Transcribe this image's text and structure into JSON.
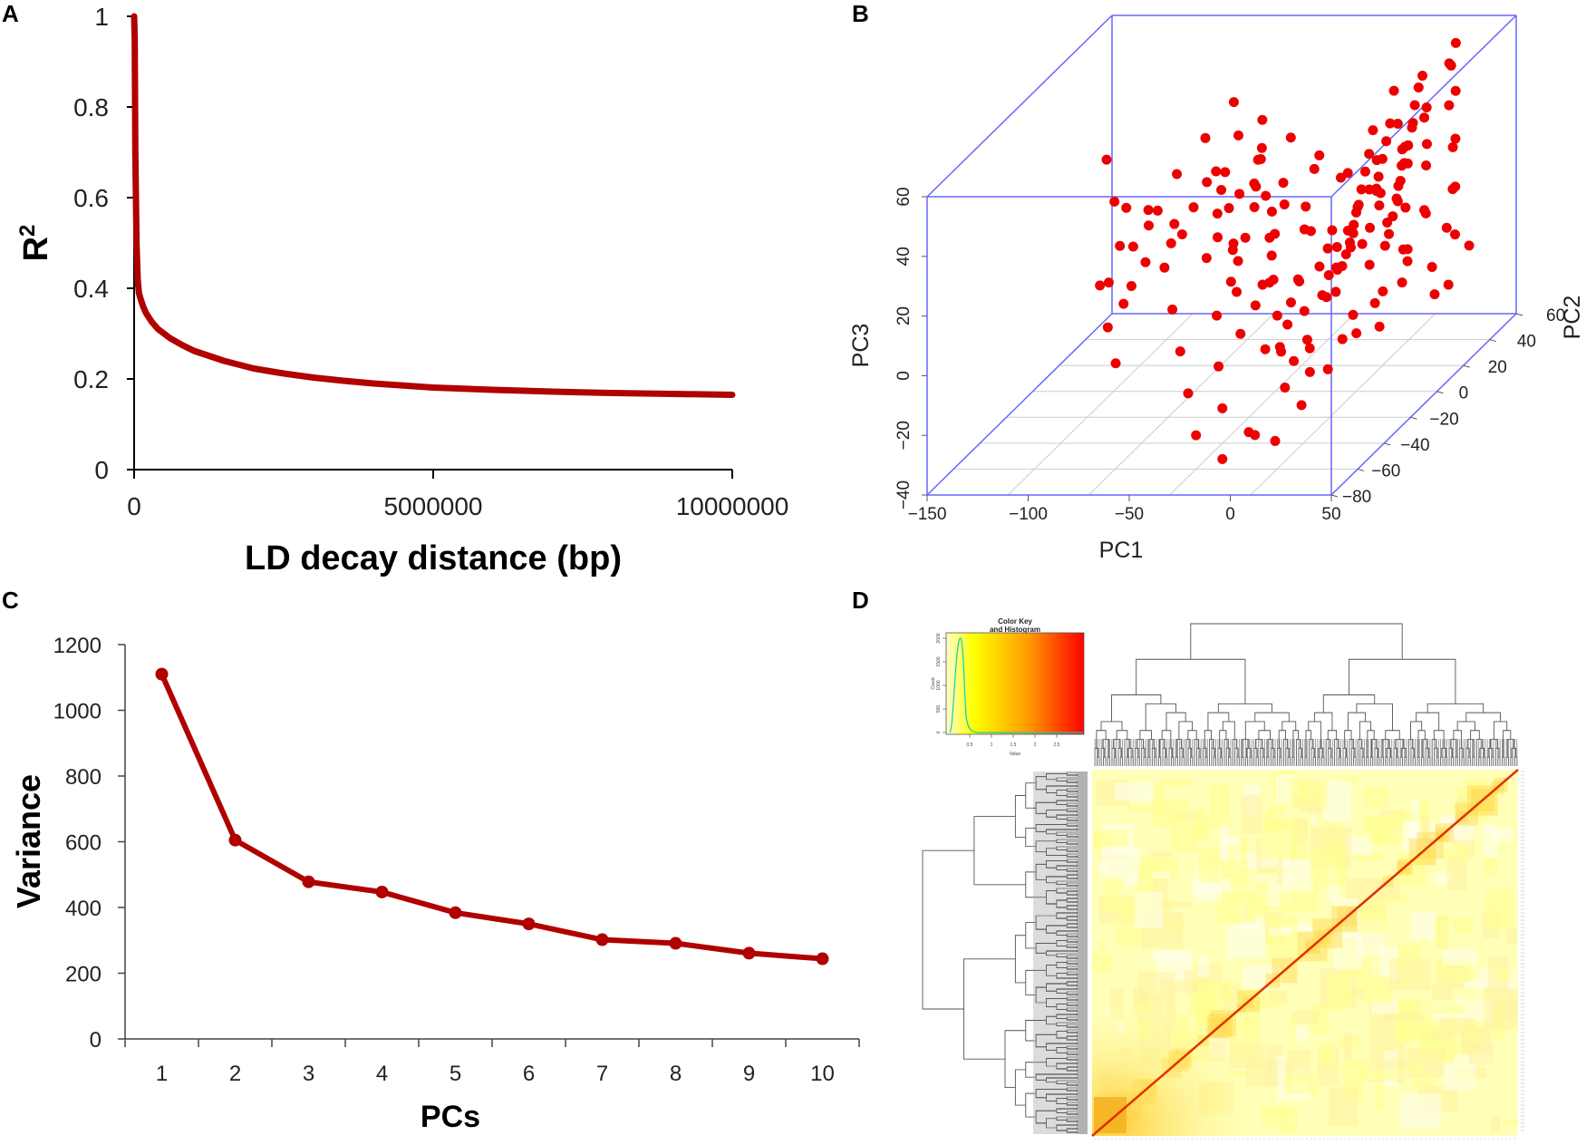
{
  "panels": {
    "a": "A",
    "b": "B",
    "c": "C",
    "d": "D"
  },
  "colors": {
    "series": "#b00000",
    "points": "#ee0000",
    "box": "#6666ff",
    "grid": "#cccccc"
  },
  "chart_data": [
    {
      "panel": "A",
      "type": "line",
      "xlabel": "LD decay distance (bp)",
      "ylabel": "R",
      "ylabel_sup": "2",
      "xlim": [
        0,
        10000000
      ],
      "ylim": [
        0,
        1
      ],
      "xticks": [
        0,
        5000000,
        10000000
      ],
      "xtick_labels": [
        "0",
        "5000000",
        "10000000"
      ],
      "yticks": [
        0,
        0.2,
        0.4,
        0.6,
        0.8,
        1
      ],
      "ytick_labels": [
        "0",
        "0.2",
        "0.4",
        "0.6",
        "0.8",
        "1"
      ],
      "x": [
        0,
        10000,
        20000,
        40000,
        60000,
        80000,
        100000,
        150000,
        200000,
        300000,
        400000,
        600000,
        800000,
        1000000,
        1500000,
        2000000,
        2500000,
        3000000,
        3500000,
        4000000,
        5000000,
        6000000,
        7000000,
        8000000,
        9000000,
        10000000
      ],
      "y": [
        1.0,
        0.95,
        0.7,
        0.5,
        0.42,
        0.39,
        0.38,
        0.36,
        0.345,
        0.325,
        0.31,
        0.29,
        0.275,
        0.262,
        0.24,
        0.223,
        0.212,
        0.203,
        0.196,
        0.19,
        0.181,
        0.176,
        0.172,
        0.169,
        0.167,
        0.165
      ]
    },
    {
      "panel": "B",
      "type": "scatter",
      "xlabel": "PC1",
      "ylabel": "PC2",
      "zlabel": "PC3",
      "x_ticks": [
        "−150",
        "−100",
        "−50",
        "0",
        "50"
      ],
      "y_ticks": [
        "−80",
        "−60",
        "−40",
        "−20",
        "0",
        "20",
        "40",
        "60"
      ],
      "z_ticks": [
        "−40",
        "−20",
        "0",
        "20",
        "40",
        "60"
      ],
      "xlim": [
        -150,
        50
      ],
      "ylim": [
        -90,
        60
      ],
      "zlim": [
        -40,
        60
      ],
      "points": [
        [
          5,
          -30,
          45
        ],
        [
          12,
          -20,
          38
        ],
        [
          20,
          -10,
          30
        ],
        [
          28,
          0,
          22
        ],
        [
          35,
          10,
          15
        ],
        [
          40,
          20,
          5
        ],
        [
          45,
          30,
          -5
        ],
        [
          -10,
          -40,
          20
        ],
        [
          0,
          -35,
          10
        ],
        [
          8,
          -25,
          0
        ],
        [
          15,
          -15,
          -10
        ],
        [
          22,
          -5,
          -18
        ],
        [
          -20,
          -45,
          28
        ],
        [
          -5,
          -50,
          15
        ],
        [
          10,
          -60,
          5
        ],
        [
          18,
          -55,
          -5
        ],
        [
          25,
          -45,
          18
        ],
        [
          30,
          -35,
          35
        ],
        [
          38,
          -25,
          25
        ],
        [
          42,
          -15,
          12
        ],
        [
          48,
          -5,
          2
        ],
        [
          50,
          5,
          -8
        ],
        [
          46,
          15,
          20
        ],
        [
          40,
          25,
          30
        ],
        [
          32,
          35,
          40
        ],
        [
          26,
          45,
          50
        ],
        [
          18,
          40,
          25
        ],
        [
          10,
          30,
          15
        ],
        [
          2,
          20,
          5
        ],
        [
          -8,
          10,
          -5
        ],
        [
          -15,
          0,
          12
        ],
        [
          -22,
          -10,
          25
        ],
        [
          -30,
          -20,
          35
        ],
        [
          -35,
          -30,
          20
        ],
        [
          -25,
          -60,
          8
        ],
        [
          -18,
          -70,
          -5
        ],
        [
          -10,
          -80,
          -15
        ],
        [
          0,
          -75,
          -25
        ],
        [
          10,
          -70,
          -30
        ],
        [
          20,
          -65,
          -20
        ],
        [
          30,
          -60,
          -10
        ],
        [
          38,
          -50,
          -2
        ],
        [
          45,
          -40,
          8
        ],
        [
          49,
          -30,
          18
        ],
        [
          44,
          -20,
          28
        ],
        [
          36,
          -10,
          38
        ],
        [
          28,
          0,
          48
        ],
        [
          20,
          10,
          55
        ],
        [
          12,
          20,
          40
        ],
        [
          4,
          30,
          30
        ],
        [
          -4,
          40,
          20
        ],
        [
          -12,
          50,
          10
        ],
        [
          -20,
          45,
          0
        ],
        [
          -28,
          35,
          -8
        ],
        [
          -36,
          25,
          -15
        ],
        [
          -42,
          15,
          5
        ],
        [
          -46,
          5,
          18
        ],
        [
          -40,
          -5,
          30
        ],
        [
          -32,
          -15,
          42
        ],
        [
          -24,
          -25,
          50
        ],
        [
          -16,
          -35,
          38
        ],
        [
          -8,
          -45,
          28
        ],
        [
          0,
          -55,
          18
        ],
        [
          8,
          -65,
          10
        ],
        [
          16,
          -75,
          2
        ],
        [
          24,
          -85,
          -6
        ],
        [
          32,
          -80,
          8
        ],
        [
          40,
          -70,
          20
        ],
        [
          47,
          -60,
          32
        ],
        [
          50,
          -50,
          45
        ],
        [
          42,
          -40,
          52
        ],
        [
          34,
          -30,
          58
        ],
        [
          26,
          -20,
          46
        ],
        [
          18,
          -10,
          36
        ],
        [
          10,
          0,
          26
        ],
        [
          2,
          10,
          16
        ],
        [
          -6,
          20,
          6
        ],
        [
          -14,
          30,
          -4
        ],
        [
          -22,
          40,
          -12
        ],
        [
          -30,
          50,
          -20
        ],
        [
          -38,
          55,
          -10
        ],
        [
          -45,
          45,
          2
        ],
        [
          -50,
          35,
          14
        ],
        [
          -55,
          25,
          26
        ],
        [
          -60,
          15,
          38
        ],
        [
          -65,
          5,
          30
        ],
        [
          -70,
          -5,
          22
        ],
        [
          -75,
          -15,
          14
        ],
        [
          -80,
          -25,
          24
        ],
        [
          -85,
          -35,
          34
        ],
        [
          -60,
          -45,
          18
        ],
        [
          -50,
          -55,
          8
        ],
        [
          -40,
          -65,
          -2
        ],
        [
          -30,
          -75,
          -12
        ],
        [
          -20,
          -85,
          -22
        ],
        [
          -10,
          -80,
          -32
        ],
        [
          0,
          -70,
          -28
        ],
        [
          15,
          -50,
          -15
        ],
        [
          25,
          -40,
          -8
        ],
        [
          35,
          -30,
          0
        ],
        [
          45,
          -20,
          10
        ],
        [
          48,
          -10,
          22
        ],
        [
          42,
          0,
          34
        ],
        [
          35,
          10,
          46
        ],
        [
          28,
          20,
          56
        ],
        [
          20,
          30,
          48
        ],
        [
          12,
          40,
          38
        ],
        [
          5,
          50,
          28
        ],
        [
          -2,
          55,
          18
        ],
        [
          -10,
          45,
          8
        ],
        [
          -18,
          35,
          -2
        ],
        [
          -26,
          25,
          -10
        ],
        [
          -34,
          15,
          -18
        ],
        [
          -42,
          5,
          -8
        ],
        [
          -48,
          -5,
          4
        ],
        [
          -52,
          -15,
          16
        ],
        [
          -46,
          -25,
          28
        ],
        [
          -38,
          -35,
          40
        ],
        [
          -30,
          -45,
          50
        ],
        [
          -22,
          -55,
          42
        ],
        [
          -14,
          -65,
          32
        ],
        [
          -6,
          -75,
          22
        ],
        [
          2,
          -85,
          12
        ],
        [
          10,
          -78,
          4
        ],
        [
          18,
          -68,
          -4
        ],
        [
          26,
          -58,
          14
        ],
        [
          34,
          -48,
          26
        ],
        [
          42,
          -38,
          36
        ],
        [
          50,
          -28,
          46
        ],
        [
          46,
          -18,
          54
        ],
        [
          38,
          -8,
          44
        ],
        [
          30,
          2,
          34
        ],
        [
          22,
          12,
          24
        ],
        [
          14,
          22,
          14
        ],
        [
          6,
          32,
          4
        ],
        [
          -2,
          42,
          -6
        ],
        [
          -10,
          52,
          -14
        ],
        [
          -18,
          58,
          2
        ],
        [
          -26,
          48,
          12
        ],
        [
          -34,
          38,
          22
        ],
        [
          -42,
          28,
          32
        ],
        [
          -50,
          18,
          42
        ],
        [
          -58,
          8,
          52
        ],
        [
          -66,
          -2,
          44
        ],
        [
          -74,
          -12,
          36
        ],
        [
          -82,
          -22,
          28
        ],
        [
          -90,
          -32,
          20
        ],
        [
          -100,
          -20,
          30
        ],
        [
          -110,
          -10,
          40
        ],
        [
          -95,
          -40,
          10
        ],
        [
          -85,
          -50,
          0
        ],
        [
          -75,
          -60,
          -8
        ],
        [
          -65,
          -70,
          16
        ],
        [
          -55,
          -80,
          26
        ],
        [
          -45,
          -85,
          36
        ],
        [
          -35,
          -78,
          46
        ],
        [
          -25,
          -68,
          56
        ],
        [
          -15,
          -58,
          48
        ],
        [
          -5,
          -48,
          38
        ],
        [
          5,
          -38,
          28
        ],
        [
          15,
          -28,
          18
        ],
        [
          25,
          -18,
          8
        ],
        [
          35,
          -8,
          -2
        ],
        [
          45,
          2,
          -10
        ],
        [
          49,
          12,
          6
        ],
        [
          43,
          22,
          18
        ],
        [
          37,
          32,
          30
        ],
        [
          31,
          42,
          42
        ],
        [
          25,
          52,
          54
        ],
        [
          19,
          58,
          44
        ],
        [
          13,
          48,
          34
        ],
        [
          7,
          38,
          24
        ],
        [
          1,
          28,
          14
        ],
        [
          -5,
          18,
          4
        ],
        [
          -11,
          8,
          -6
        ],
        [
          -17,
          -2,
          -14
        ],
        [
          -23,
          -12,
          -22
        ],
        [
          -29,
          -22,
          -4
        ],
        [
          -35,
          -32,
          8
        ],
        [
          -41,
          -42,
          20
        ],
        [
          -47,
          -52,
          32
        ],
        [
          -53,
          -62,
          44
        ],
        [
          -59,
          -72,
          36
        ],
        [
          -65,
          -82,
          28
        ]
      ]
    },
    {
      "panel": "C",
      "type": "line",
      "xlabel": "PCs",
      "ylabel": "Variance",
      "categories": [
        "1",
        "2",
        "3",
        "4",
        "5",
        "6",
        "7",
        "8",
        "9",
        "10"
      ],
      "values": [
        1110,
        605,
        478,
        447,
        384,
        350,
        302,
        291,
        261,
        244
      ],
      "ylim": [
        0,
        1200
      ],
      "yticks": [
        "0",
        "200",
        "400",
        "600",
        "800",
        "1000",
        "1200"
      ]
    },
    {
      "panel": "D",
      "type": "heatmap",
      "color_key_title": "Color Key",
      "color_key_subtitle": "and Histogram",
      "key_xlabel": "Value",
      "key_ylabel": "Count",
      "key_xticks": [
        "0.5",
        "1",
        "1.5",
        "2",
        "2.5"
      ],
      "key_yticks": [
        "0",
        "500",
        "1000",
        "1500",
        "2000"
      ],
      "scale_low": "#ffffcc",
      "scale_mid": "#ffff00",
      "scale_high": "#ff0000",
      "n_samples": 200
    }
  ]
}
